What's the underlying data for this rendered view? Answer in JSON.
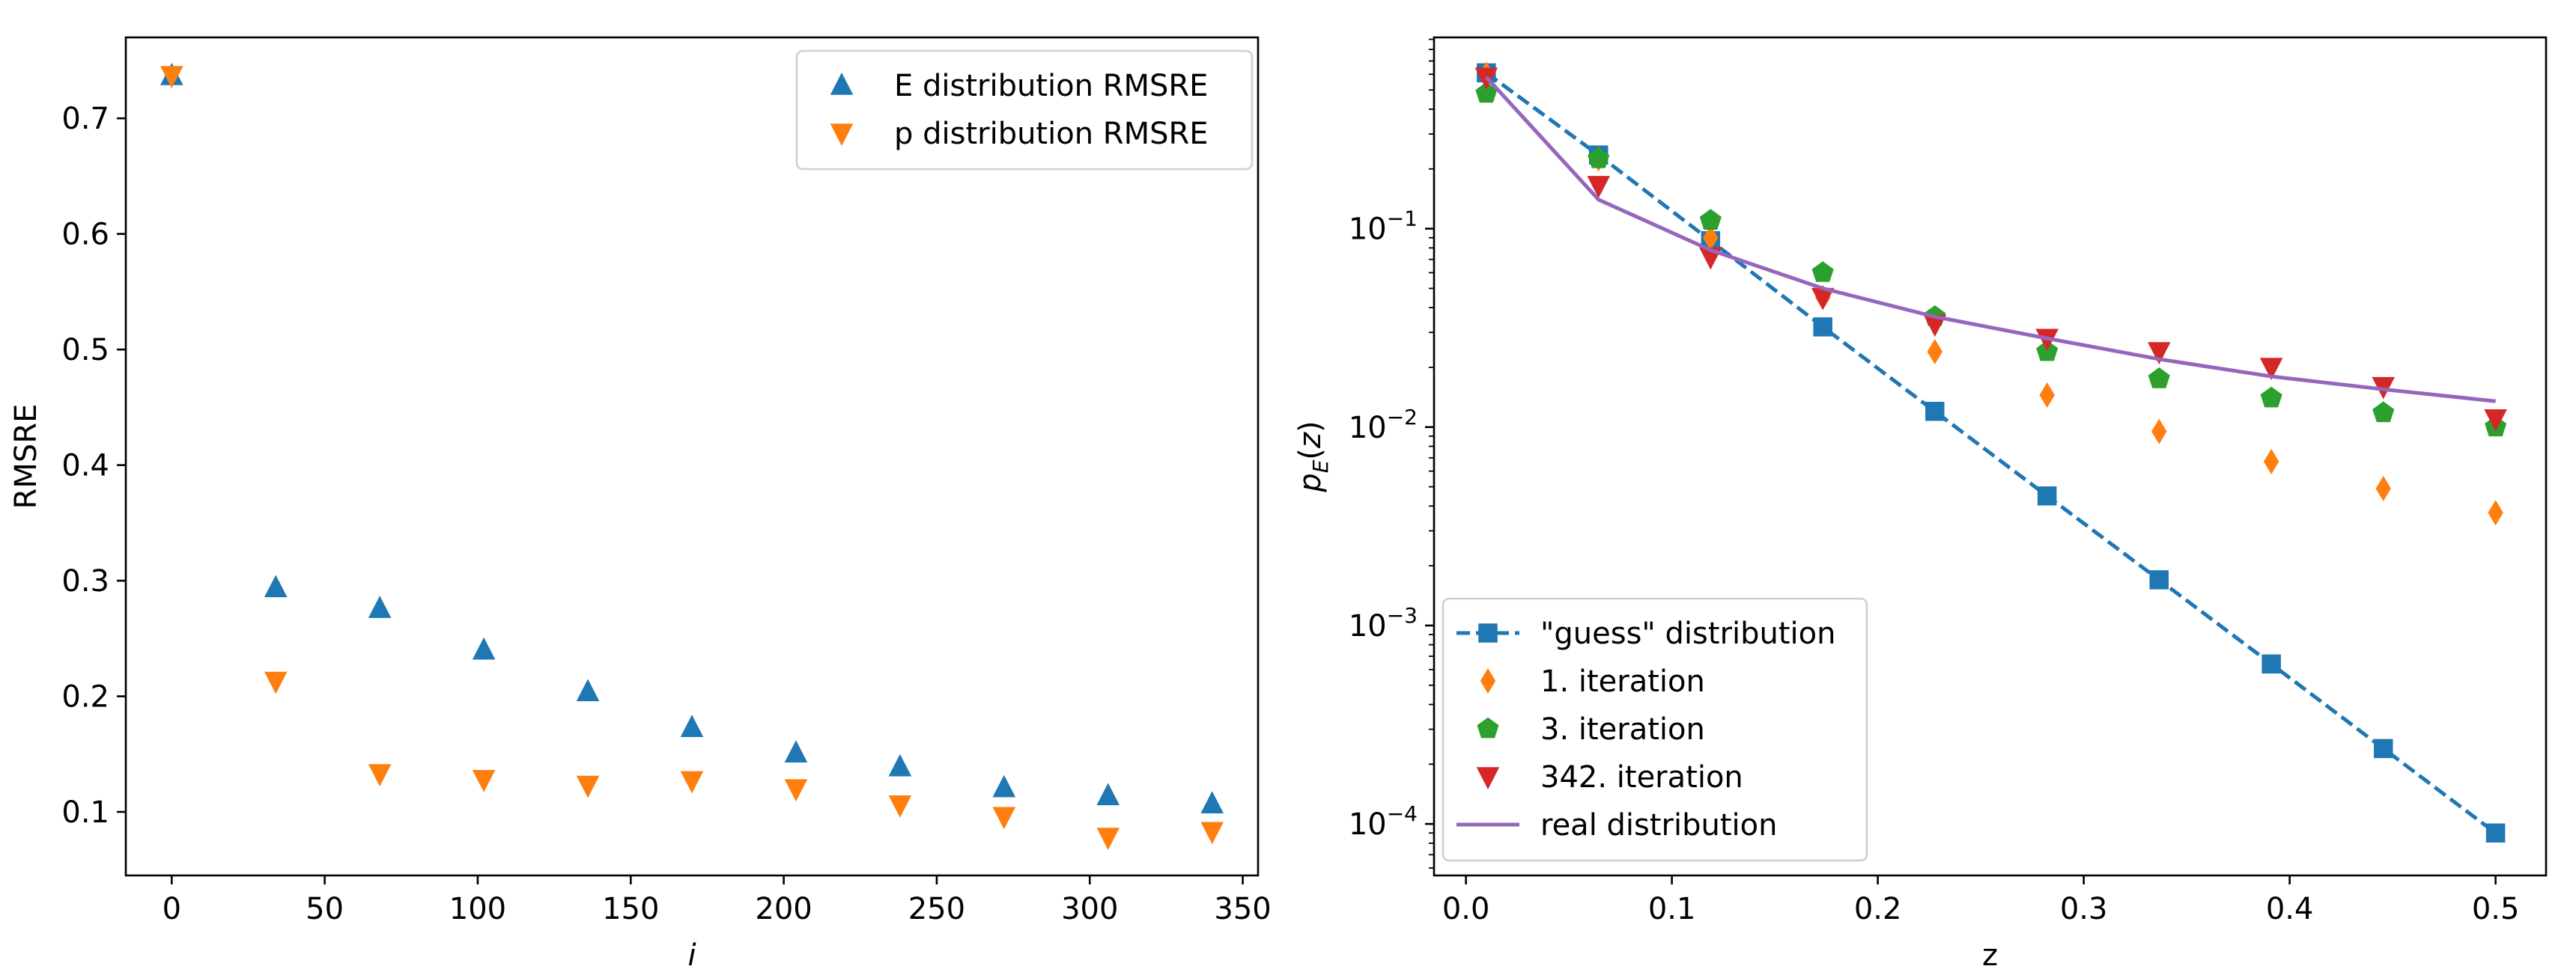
{
  "chart_data": [
    {
      "type": "scatter",
      "xlabel": "i",
      "ylabel": "RMSRE",
      "xlim": [
        -15,
        355
      ],
      "ylim": [
        0.045,
        0.77
      ],
      "xticks": [
        0,
        50,
        100,
        150,
        200,
        250,
        300,
        350
      ],
      "xtick_labels": [
        "0",
        "50",
        "100",
        "150",
        "200",
        "250",
        "300",
        "350"
      ],
      "yticks": [
        0.1,
        0.2,
        0.3,
        0.4,
        0.5,
        0.6,
        0.7
      ],
      "ytick_labels": [
        "0.1",
        "0.2",
        "0.3",
        "0.4",
        "0.5",
        "0.6",
        "0.7"
      ],
      "grid": false,
      "legend_position": "top-right",
      "series": [
        {
          "name": "E distribution RMSRE",
          "marker": "triangle-up",
          "color": "#1f77b4",
          "x": [
            0,
            34,
            68,
            102,
            136,
            170,
            204,
            238,
            272,
            306,
            340
          ],
          "y": [
            0.737,
            0.294,
            0.276,
            0.24,
            0.204,
            0.173,
            0.151,
            0.139,
            0.121,
            0.114,
            0.107
          ]
        },
        {
          "name": "p distribution RMSRE",
          "marker": "triangle-down",
          "color": "#ff7f0e",
          "x": [
            0,
            34,
            68,
            102,
            136,
            170,
            204,
            238,
            272,
            306,
            340
          ],
          "y": [
            0.737,
            0.213,
            0.133,
            0.128,
            0.123,
            0.127,
            0.12,
            0.106,
            0.096,
            0.078,
            0.083
          ]
        }
      ]
    },
    {
      "type": "line",
      "xlabel": "z",
      "ylabel": "p_E(z)",
      "yscale": "log",
      "xlim": [
        -0.0155,
        0.5245
      ],
      "ylim": [
        5.5e-05,
        0.92
      ],
      "xticks": [
        0.0,
        0.1,
        0.2,
        0.3,
        0.4,
        0.5
      ],
      "xtick_labels": [
        "0.0",
        "0.1",
        "0.2",
        "0.3",
        "0.4",
        "0.5"
      ],
      "yticks": [
        0.0001,
        0.001,
        0.01,
        0.1
      ],
      "ytick_labels": [
        {
          "base": "10",
          "exp": "−4"
        },
        {
          "base": "10",
          "exp": "−3"
        },
        {
          "base": "10",
          "exp": "−2"
        },
        {
          "base": "10",
          "exp": "−1"
        }
      ],
      "grid": false,
      "legend_position": "bottom-left",
      "series": [
        {
          "name": "\"guess\" distribution",
          "marker": "square",
          "line": "dashed",
          "color": "#1f77b4",
          "x": [
            0.0099,
            0.0644,
            0.1188,
            0.1733,
            0.2277,
            0.2822,
            0.3366,
            0.3911,
            0.4455,
            0.5
          ],
          "y": [
            0.61,
            0.235,
            0.087,
            0.032,
            0.012,
            0.0045,
            0.0017,
            0.00064,
            0.00024,
            9e-05
          ]
        },
        {
          "name": "1. iteration",
          "marker": "thin-diamond",
          "line": "none",
          "color": "#ff7f0e",
          "x": [
            0.0099,
            0.0644,
            0.1188,
            0.1733,
            0.2277,
            0.2822,
            0.3366,
            0.3911,
            0.4455,
            0.5
          ],
          "y": [
            0.6,
            0.225,
            0.09,
            0.045,
            0.024,
            0.0145,
            0.0095,
            0.0067,
            0.0049,
            0.0037
          ]
        },
        {
          "name": "3. iteration",
          "marker": "pentagon",
          "line": "none",
          "color": "#2ca02c",
          "x": [
            0.0099,
            0.0644,
            0.1188,
            0.1733,
            0.2277,
            0.2822,
            0.3366,
            0.3911,
            0.4455,
            0.5
          ],
          "y": [
            0.48,
            0.225,
            0.11,
            0.06,
            0.036,
            0.024,
            0.0175,
            0.014,
            0.0118,
            0.01
          ]
        },
        {
          "name": "342. iteration",
          "marker": "triangle-down",
          "line": "none",
          "color": "#d62728",
          "x": [
            0.0099,
            0.0644,
            0.1188,
            0.1733,
            0.2277,
            0.2822,
            0.3366,
            0.3911,
            0.4455,
            0.5
          ],
          "y": [
            0.58,
            0.165,
            0.072,
            0.045,
            0.033,
            0.028,
            0.024,
            0.02,
            0.016,
            0.011
          ]
        },
        {
          "name": "real distribution",
          "marker": "none",
          "line": "solid",
          "color": "#9467bd",
          "x": [
            0.0099,
            0.0644,
            0.1188,
            0.1733,
            0.2277,
            0.2822,
            0.3366,
            0.3911,
            0.4455,
            0.5
          ],
          "y": [
            0.58,
            0.14,
            0.078,
            0.05,
            0.036,
            0.028,
            0.022,
            0.018,
            0.0155,
            0.0135
          ]
        }
      ]
    }
  ]
}
